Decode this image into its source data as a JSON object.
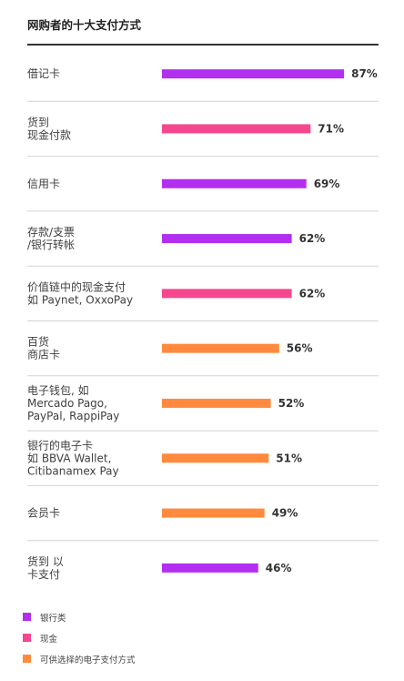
{
  "title": "网购者的十大支付方式",
  "chart_data": {
    "type": "bar",
    "orientation": "horizontal",
    "title": "网购者的十大支付方式",
    "xlabel": "",
    "ylabel": "",
    "value_format": "percent",
    "xlim": [
      0,
      100
    ],
    "categories": [
      [
        "借记卡"
      ],
      [
        "货到",
        "现金付款"
      ],
      [
        "信用卡"
      ],
      [
        "存款/支票",
        "/银行转帐"
      ],
      [
        "价值链中的现金支付",
        "如 Paynet, OxxoPay"
      ],
      [
        "百货",
        "商店卡"
      ],
      [
        "电子钱包, 如",
        "Mercado Pago,",
        "PayPal, RappiPay"
      ],
      [
        "银行的电子卡",
        "如 BBVA Wallet,",
        "Citibanamex Pay"
      ],
      [
        "会员卡"
      ],
      [
        "货到 以",
        "卡支付"
      ]
    ],
    "values": [
      87,
      71,
      69,
      62,
      62,
      56,
      52,
      51,
      49,
      46
    ],
    "value_labels": [
      "87%",
      "71%",
      "69%",
      "62%",
      "62%",
      "56%",
      "52%",
      "51%",
      "49%",
      "46%"
    ],
    "groups": [
      0,
      1,
      0,
      0,
      1,
      2,
      2,
      2,
      2,
      0
    ],
    "legend": [
      {
        "label": "银行类",
        "color": "#b32ff0"
      },
      {
        "label": "现金",
        "color": "#f5478f"
      },
      {
        "label": "可供选择的电子支付方式",
        "color": "#ff8a3d"
      }
    ],
    "legend_placement": "bottom-left",
    "grid": false
  }
}
